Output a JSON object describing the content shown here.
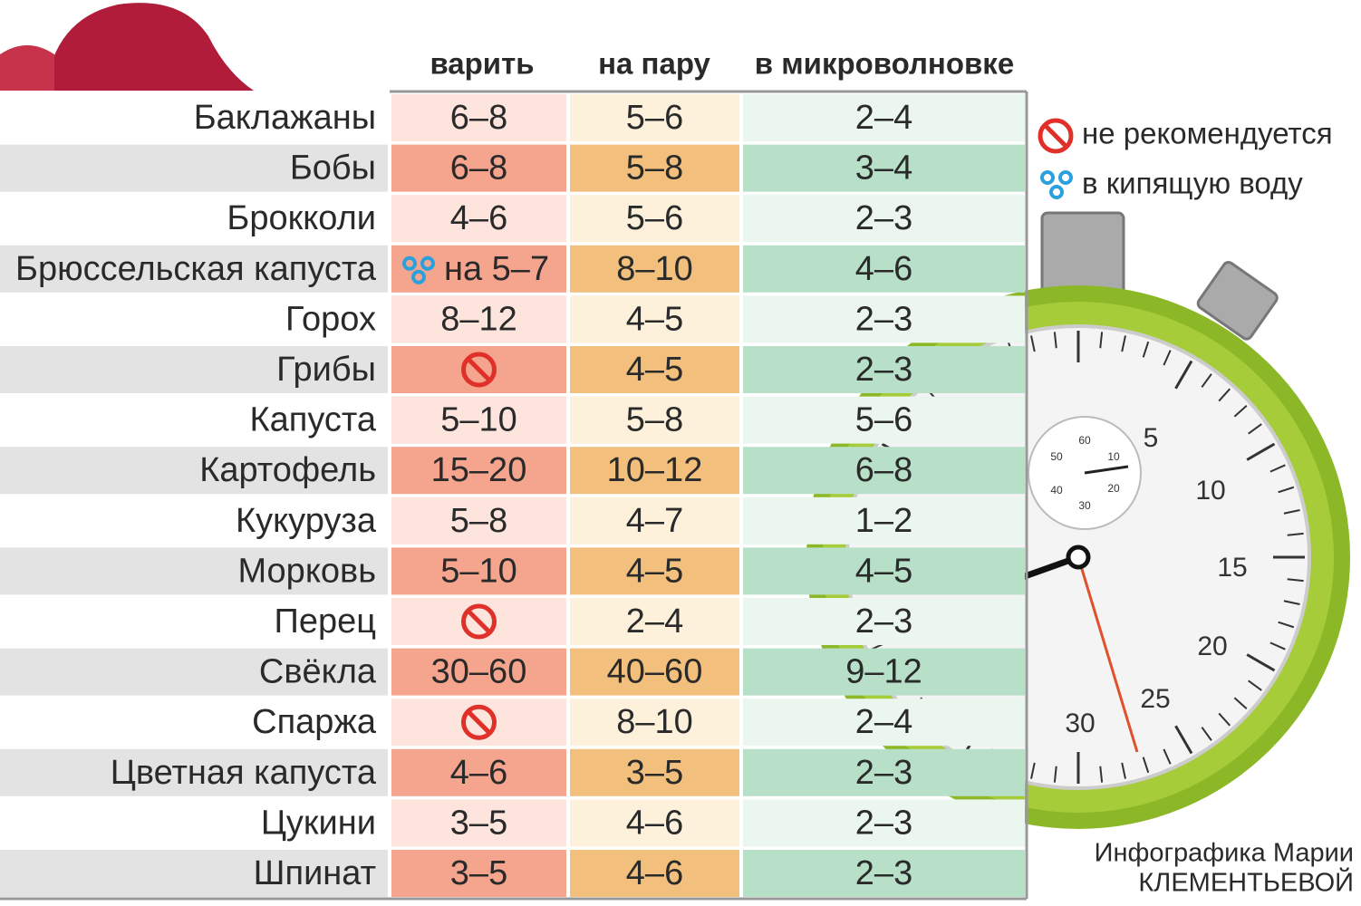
{
  "header": {
    "columns": [
      "варить",
      "на пару",
      "в микроволновке"
    ]
  },
  "table": {
    "rows": [
      {
        "name": "Баклажаны",
        "boil": "6–8",
        "steam": "5–6",
        "micro": "2–4"
      },
      {
        "name": "Бобы",
        "boil": "6–8",
        "steam": "5–8",
        "micro": "3–4"
      },
      {
        "name": "Брокколи",
        "boil": "4–6",
        "steam": "5–6",
        "micro": "2–3"
      },
      {
        "name": "Брюссельская капуста",
        "boil": "на 5–7",
        "boiling_water": true,
        "steam": "8–10",
        "micro": "4–6"
      },
      {
        "name": "Горох",
        "boil": "8–12",
        "steam": "4–5",
        "micro": "2–3"
      },
      {
        "name": "Грибы",
        "boil": null,
        "steam": "4–5",
        "micro": "2–3"
      },
      {
        "name": "Капуста",
        "boil": "5–10",
        "steam": "5–8",
        "micro": "5–6"
      },
      {
        "name": "Картофель",
        "boil": "15–20",
        "steam": "10–12",
        "micro": "6–8"
      },
      {
        "name": "Кукуруза",
        "boil": "5–8",
        "steam": "4–7",
        "micro": "1–2"
      },
      {
        "name": "Морковь",
        "boil": "5–10",
        "steam": "4–5",
        "micro": "4–5"
      },
      {
        "name": "Перец",
        "boil": null,
        "steam": "2–4",
        "micro": "2–3"
      },
      {
        "name": "Свёкла",
        "boil": "30–60",
        "steam": "40–60",
        "micro": "9–12"
      },
      {
        "name": "Спаржа",
        "boil": null,
        "steam": "8–10",
        "micro": "2–4"
      },
      {
        "name": "Цветная капуста",
        "boil": "4–6",
        "steam": "3–5",
        "micro": "2–3"
      },
      {
        "name": "Цукини",
        "boil": "3–5",
        "steam": "4–6",
        "micro": "2–3"
      },
      {
        "name": "Шпинат",
        "boil": "3–5",
        "steam": "4–6",
        "micro": "2–3"
      }
    ]
  },
  "legend": {
    "not_recommended": "не рекомендуется",
    "boiling_water": "в кипящую воду"
  },
  "stopwatch": {
    "dial_labels": [
      "5",
      "10",
      "15",
      "20",
      "25",
      "30"
    ],
    "subdial_labels": [
      "60",
      "10",
      "20",
      "30",
      "40",
      "50"
    ]
  },
  "credit": {
    "line1": "Инфографика Марии",
    "line2": "КЛЕМЕНТЬЕВОЙ"
  }
}
